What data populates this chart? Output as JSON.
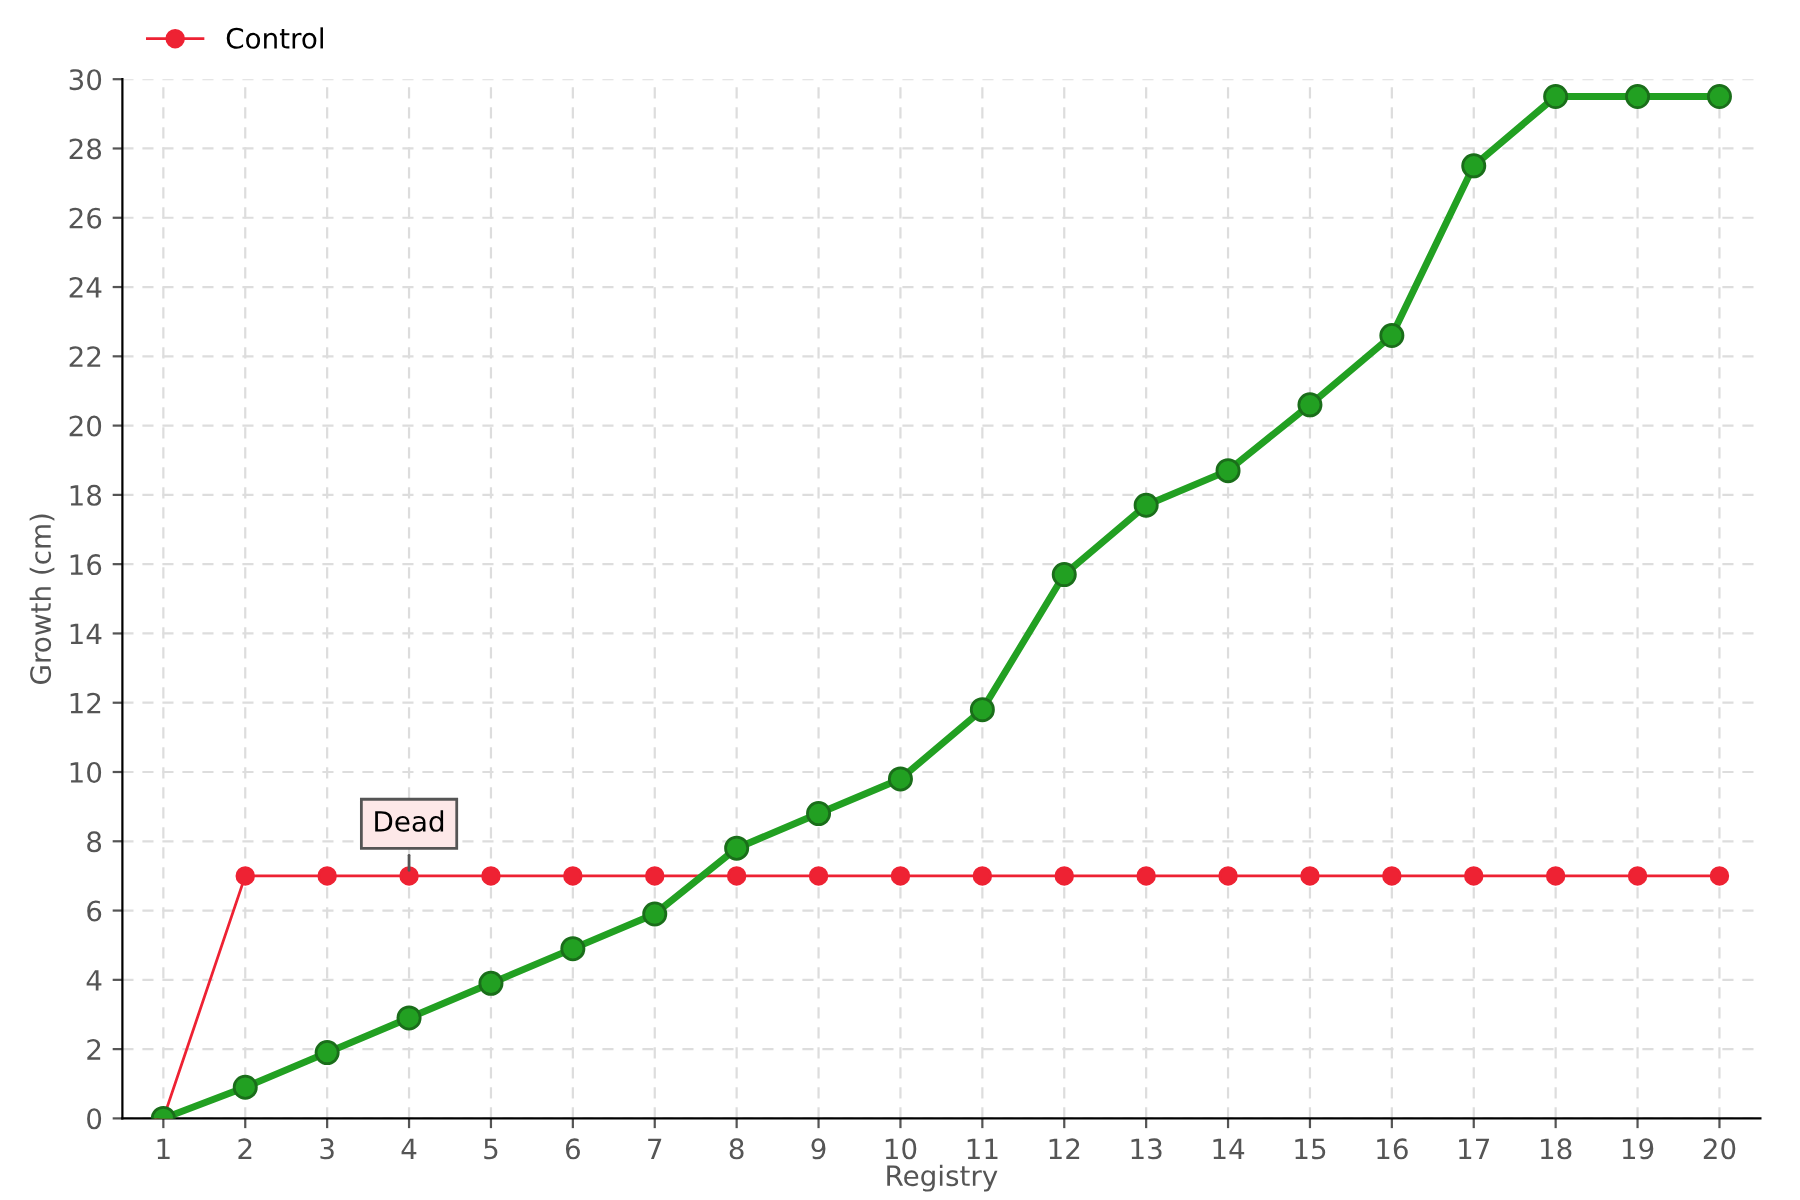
{
  "chart_data": {
    "type": "line",
    "xlabel": "Registry",
    "ylabel": "Growth (cm)",
    "categories": [
      "1",
      "2",
      "3",
      "4",
      "5",
      "6",
      "7",
      "8",
      "9",
      "10",
      "11",
      "12",
      "13",
      "14",
      "15",
      "16",
      "17",
      "18",
      "19",
      "20"
    ],
    "series": [
      {
        "color": "#22a022",
        "values": [
          0,
          0.9,
          1.9,
          2.9,
          3.9,
          4.9,
          5.9,
          7.8,
          8.8,
          9.8,
          11.8,
          15.7,
          17.7,
          18.7,
          20.6,
          22.6,
          27.5,
          29.5,
          29.5,
          29.5
        ]
      },
      {
        "name": "Control",
        "color": "#ee2233",
        "values": [
          0,
          7,
          7,
          7,
          7,
          7,
          7,
          7,
          7,
          7,
          7,
          7,
          7,
          7,
          7,
          7,
          7,
          7,
          7,
          7
        ]
      }
    ],
    "ylim": [
      0,
      30
    ],
    "yticks": [
      0,
      2,
      4,
      6,
      8,
      10,
      12,
      14,
      16,
      18,
      20,
      22,
      24,
      26,
      28,
      30
    ],
    "grid": true,
    "legend": "top left",
    "marker": "circle",
    "line_style": "solid",
    "annotations": [
      {
        "text": "Dead",
        "x": "4",
        "y": 7
      }
    ]
  }
}
